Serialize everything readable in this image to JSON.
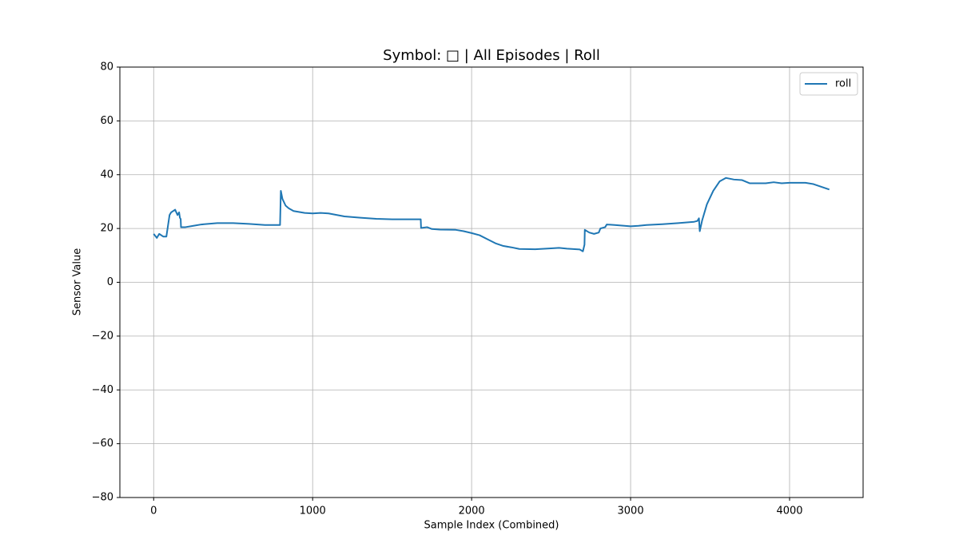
{
  "chart_data": {
    "type": "line",
    "title": "Symbol: □ | All Episodes | Roll",
    "xlabel": "Sample Index (Combined)",
    "ylabel": "Sensor Value",
    "x": [
      0,
      20,
      35,
      60,
      80,
      100,
      110,
      125,
      135,
      150,
      160,
      165,
      170,
      172,
      200,
      250,
      300,
      400,
      500,
      600,
      700,
      795,
      800,
      810,
      830,
      850,
      880,
      950,
      1000,
      1050,
      1100,
      1200,
      1300,
      1400,
      1500,
      1600,
      1680,
      1682,
      1720,
      1750,
      1800,
      1900,
      1950,
      2000,
      2050,
      2100,
      2150,
      2200,
      2250,
      2300,
      2400,
      2500,
      2550,
      2600,
      2680,
      2700,
      2710,
      2712,
      2740,
      2770,
      2800,
      2810,
      2840,
      2850,
      2900,
      3000,
      3050,
      3100,
      3200,
      3300,
      3400,
      3420,
      3430,
      3435,
      3450,
      3480,
      3520,
      3560,
      3600,
      3650,
      3700,
      3750,
      3850,
      3900,
      3950,
      4000,
      4100,
      4150,
      4200,
      4250
    ],
    "series": [
      {
        "name": "roll",
        "color": "#1f77b4",
        "values": [
          18,
          16.5,
          18,
          17,
          17,
          25,
          26,
          26.6,
          27,
          25,
          26,
          24,
          23.5,
          20.5,
          20.5,
          21,
          21.5,
          22,
          22,
          21.7,
          21.3,
          21.3,
          34,
          31,
          28.5,
          27.5,
          26.5,
          25.8,
          25.6,
          25.8,
          25.6,
          24.5,
          24,
          23.6,
          23.4,
          23.4,
          23.4,
          20.2,
          20.5,
          19.8,
          19.6,
          19.5,
          19,
          18.3,
          17.5,
          16,
          14.5,
          13.5,
          13,
          12.4,
          12.3,
          12.6,
          12.8,
          12.5,
          12.2,
          11.5,
          14,
          19.5,
          18.5,
          18,
          18.5,
          20,
          20.5,
          21.5,
          21.3,
          20.8,
          21,
          21.3,
          21.6,
          22,
          22.5,
          22.8,
          23.8,
          19,
          23,
          29,
          34,
          37.5,
          38.8,
          38.2,
          38,
          36.8,
          36.8,
          37.2,
          36.8,
          37,
          37,
          36.5,
          35.5,
          34.5
        ]
      }
    ],
    "xlim": [
      -212.5,
      4462.5
    ],
    "xticks": [
      0,
      1000,
      2000,
      3000,
      4000
    ],
    "ylim": [
      -80,
      80
    ],
    "yticks": [
      {
        "value": -80,
        "label": "−80"
      },
      {
        "value": -60,
        "label": "−60"
      },
      {
        "value": -40,
        "label": "−40"
      },
      {
        "value": -20,
        "label": "−20"
      },
      0,
      20,
      40,
      60,
      80
    ],
    "grid": true,
    "legend": "upper right"
  }
}
